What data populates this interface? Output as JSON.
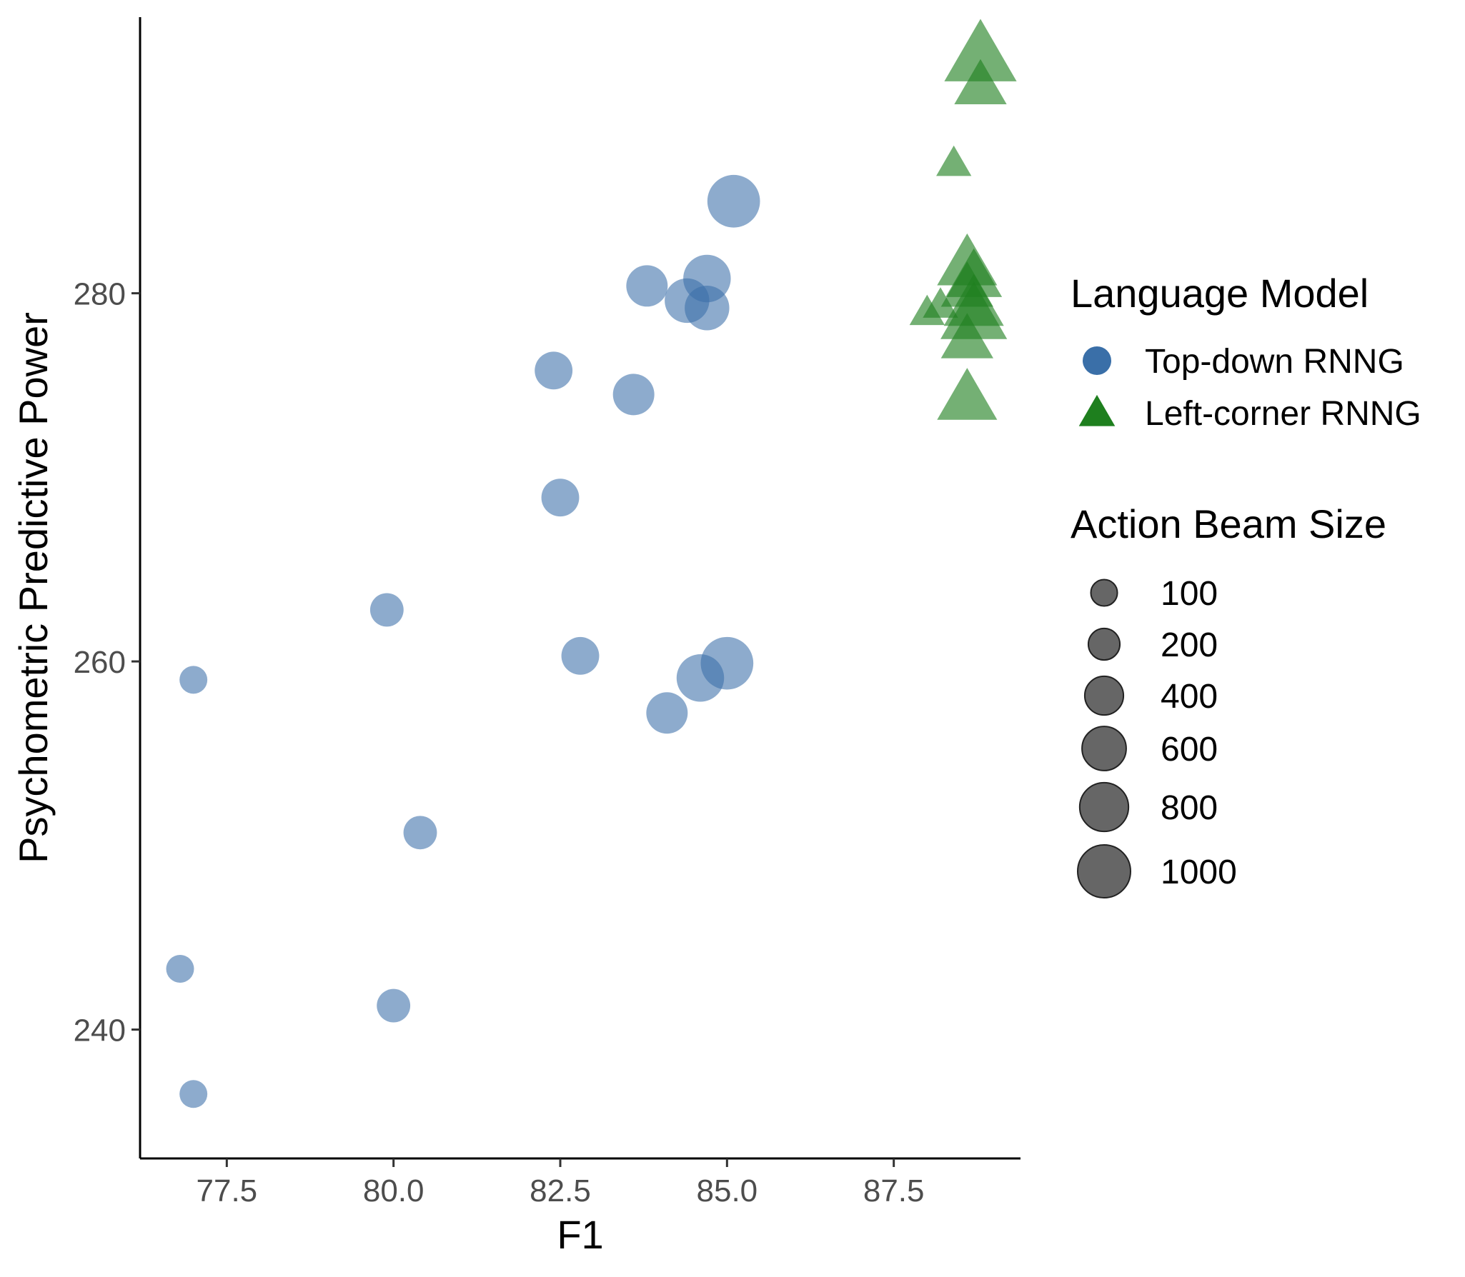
{
  "chart_data": {
    "type": "scatter",
    "title": "",
    "xlabel": "F1",
    "ylabel": "Psychometric Predictive Power",
    "xlim": [
      76.2,
      89.4
    ],
    "ylim": [
      233,
      295
    ],
    "xticks": [
      77.5,
      80.0,
      82.5,
      85.0,
      87.5
    ],
    "xtick_labels": [
      "77.5",
      "80.0",
      "82.5",
      "85.0",
      "87.5"
    ],
    "yticks": [
      240,
      260,
      280
    ],
    "ytick_labels": [
      "240",
      "260",
      "280"
    ],
    "grid": false,
    "legend_placement": "right",
    "colors": {
      "top_down": "#3a6fa8",
      "left_corner": "#1e7f1e",
      "size_key": "#555555"
    },
    "legend": {
      "color_title": "Language Model",
      "series_labels": [
        "Top-down RNNG",
        "Left-corner RNNG"
      ],
      "size_title": "Action Beam Size",
      "sizes": [
        100,
        200,
        400,
        600,
        800,
        1000
      ],
      "size_labels": [
        "100",
        "200",
        "400",
        "600",
        "800",
        "1000"
      ]
    },
    "series": [
      {
        "name": "Top-down RNNG",
        "shape": "circle",
        "points": [
          {
            "x": 77.0,
            "y": 236.5,
            "size": 100
          },
          {
            "x": 76.8,
            "y": 243.3,
            "size": 100
          },
          {
            "x": 77.0,
            "y": 259.0,
            "size": 100
          },
          {
            "x": 80.0,
            "y": 241.3,
            "size": 200
          },
          {
            "x": 80.4,
            "y": 250.7,
            "size": 200
          },
          {
            "x": 79.9,
            "y": 262.8,
            "size": 200
          },
          {
            "x": 82.5,
            "y": 268.9,
            "size": 300
          },
          {
            "x": 82.4,
            "y": 275.8,
            "size": 300
          },
          {
            "x": 82.8,
            "y": 260.3,
            "size": 300
          },
          {
            "x": 83.6,
            "y": 274.5,
            "size": 400
          },
          {
            "x": 83.8,
            "y": 280.4,
            "size": 400
          },
          {
            "x": 84.1,
            "y": 257.2,
            "size": 400
          },
          {
            "x": 84.4,
            "y": 279.6,
            "size": 500
          },
          {
            "x": 84.6,
            "y": 259.1,
            "size": 600
          },
          {
            "x": 84.7,
            "y": 280.8,
            "size": 600
          },
          {
            "x": 84.7,
            "y": 279.2,
            "size": 500
          },
          {
            "x": 85.0,
            "y": 259.9,
            "size": 800
          },
          {
            "x": 85.1,
            "y": 285.0,
            "size": 800
          }
        ]
      },
      {
        "name": "Left-corner RNNG",
        "shape": "triangle",
        "points": [
          {
            "x": 88.8,
            "y": 291.2,
            "size": 400
          },
          {
            "x": 88.8,
            "y": 292.8,
            "size": 1000
          },
          {
            "x": 88.4,
            "y": 287.0,
            "size": 100
          },
          {
            "x": 88.6,
            "y": 281.5,
            "size": 600
          },
          {
            "x": 88.7,
            "y": 280.8,
            "size": 500
          },
          {
            "x": 88.6,
            "y": 280.2,
            "size": 400
          },
          {
            "x": 88.7,
            "y": 279.3,
            "size": 600
          },
          {
            "x": 88.7,
            "y": 278.7,
            "size": 800
          },
          {
            "x": 88.6,
            "y": 277.4,
            "size": 400
          },
          {
            "x": 88.6,
            "y": 274.2,
            "size": 600
          },
          {
            "x": 88.0,
            "y": 278.9,
            "size": 100
          },
          {
            "x": 88.2,
            "y": 279.3,
            "size": 100
          }
        ]
      }
    ]
  }
}
